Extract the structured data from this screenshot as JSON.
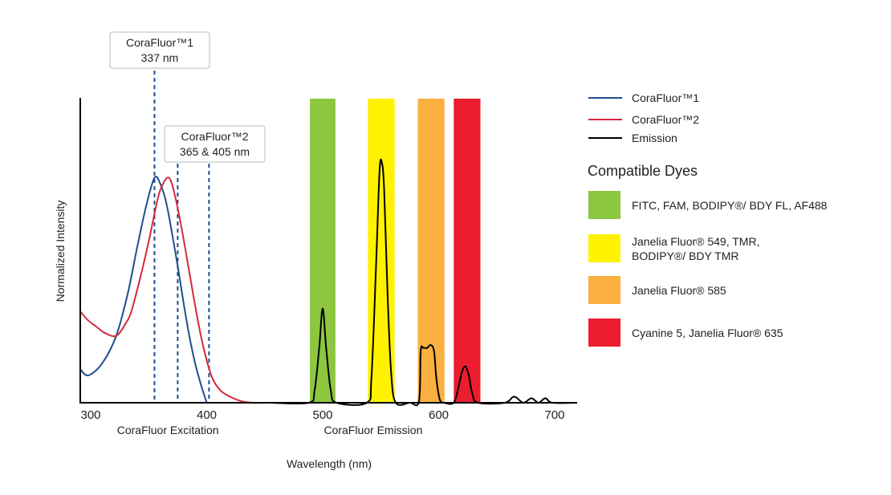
{
  "chart_data": {
    "type": "line",
    "xlabel": "Wavelength (nm)",
    "ylabel": "Normalized Intensity",
    "xlim": [
      291,
      719
    ],
    "ylim": [
      0,
      1
    ],
    "x_ticks": [
      300,
      400,
      500,
      600,
      700
    ],
    "x_group_labels": [
      {
        "text": "CoraFluor Excitation",
        "center": 370
      },
      {
        "text": "CoraFluor Emission",
        "center": 547
      }
    ],
    "grid": false,
    "legend_position": "right",
    "series": [
      {
        "name": "CoraFluor™1",
        "color": "#1f4e8c",
        "points": [
          [
            291,
            0.11
          ],
          [
            298,
            0.09
          ],
          [
            310,
            0.13
          ],
          [
            322,
            0.22
          ],
          [
            332,
            0.36
          ],
          [
            340,
            0.51
          ],
          [
            348,
            0.65
          ],
          [
            355,
            0.74
          ],
          [
            360,
            0.72
          ],
          [
            365,
            0.66
          ],
          [
            370,
            0.56
          ],
          [
            375,
            0.45
          ],
          [
            380,
            0.33
          ],
          [
            385,
            0.22
          ],
          [
            390,
            0.13
          ],
          [
            395,
            0.06
          ],
          [
            400,
            0.0
          ]
        ]
      },
      {
        "name": "CoraFluor™2",
        "color": "#d42a3c",
        "points": [
          [
            291,
            0.3
          ],
          [
            298,
            0.27
          ],
          [
            305,
            0.25
          ],
          [
            312,
            0.23
          ],
          [
            322,
            0.22
          ],
          [
            330,
            0.26
          ],
          [
            335,
            0.3
          ],
          [
            342,
            0.4
          ],
          [
            350,
            0.53
          ],
          [
            356,
            0.64
          ],
          [
            360,
            0.7
          ],
          [
            366,
            0.74
          ],
          [
            370,
            0.72
          ],
          [
            375,
            0.64
          ],
          [
            380,
            0.54
          ],
          [
            385,
            0.43
          ],
          [
            390,
            0.32
          ],
          [
            395,
            0.22
          ],
          [
            400,
            0.14
          ],
          [
            405,
            0.08
          ],
          [
            412,
            0.04
          ],
          [
            420,
            0.02
          ],
          [
            430,
            0.005
          ],
          [
            440,
            0.0
          ],
          [
            455,
            0.0
          ]
        ]
      },
      {
        "name": "Emission",
        "color": "#000000",
        "points": [
          [
            455,
            0
          ],
          [
            488,
            0
          ],
          [
            493,
            0.04
          ],
          [
            497,
            0.18
          ],
          [
            500,
            0.31
          ],
          [
            503,
            0.18
          ],
          [
            507,
            0.04
          ],
          [
            512,
            0
          ],
          [
            538,
            0
          ],
          [
            542,
            0.08
          ],
          [
            546,
            0.45
          ],
          [
            549,
            0.76
          ],
          [
            551,
            0.79
          ],
          [
            553,
            0.7
          ],
          [
            556,
            0.35
          ],
          [
            559,
            0.1
          ],
          [
            563,
            0
          ],
          [
            575,
            0
          ],
          [
            583,
            0.005
          ],
          [
            584.5,
            0.17
          ],
          [
            587,
            0.18
          ],
          [
            590,
            0.18
          ],
          [
            593,
            0.19
          ],
          [
            596,
            0.17
          ],
          [
            598,
            0.08
          ],
          [
            601,
            0.01
          ],
          [
            605,
            0
          ],
          [
            613,
            0
          ],
          [
            617,
            0.05
          ],
          [
            620,
            0.1
          ],
          [
            623,
            0.12
          ],
          [
            626,
            0.09
          ],
          [
            629,
            0.03
          ],
          [
            634,
            0
          ],
          [
            657,
            0
          ],
          [
            665,
            0.02
          ],
          [
            673,
            0
          ],
          [
            680,
            0.015
          ],
          [
            686,
            0
          ],
          [
            692,
            0.015
          ],
          [
            698,
            0
          ],
          [
            719,
            0
          ]
        ]
      }
    ],
    "excitation_markers": [
      {
        "label_line1": "CoraFluor™1",
        "label_line2": "337 nm",
        "lines_at": [
          355
        ]
      },
      {
        "label_line1": "CoraFluor™2",
        "label_line2": "365 & 405 nm",
        "lines_at": [
          375,
          402
        ]
      }
    ],
    "marker_color": "#1f4e8c",
    "legend_title": "Compatible Dyes",
    "dye_bands": [
      {
        "range": [
          489,
          511
        ],
        "color": "#8dc63f",
        "label": "FITC, FAM, BODIPY®/ BDY FL, AF488"
      },
      {
        "range": [
          539,
          562
        ],
        "color": "#fff200",
        "label_line1": "Janelia Fluor® 549, TMR,",
        "label_line2": "BODIPY®/ BDY TMR"
      },
      {
        "range": [
          582,
          605
        ],
        "color": "#fbb040",
        "label": "Janelia Fluor® 585"
      },
      {
        "range": [
          613,
          636
        ],
        "color": "#ed1c2e",
        "label": "Cyanine 5, Janelia Fluor® 635"
      }
    ]
  }
}
